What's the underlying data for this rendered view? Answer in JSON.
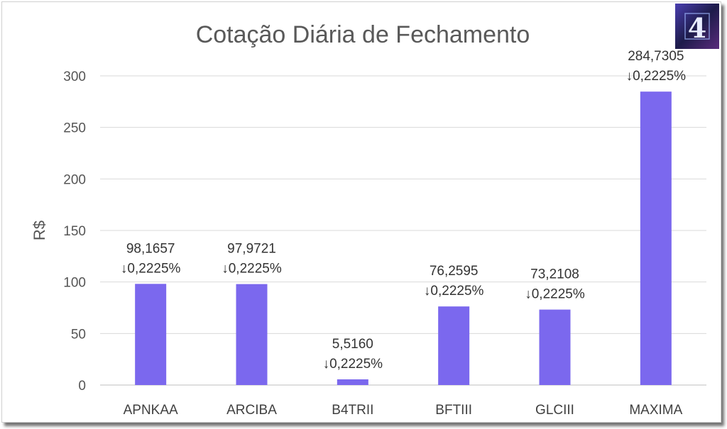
{
  "chart_data": {
    "type": "bar",
    "title": "Cotação Diária de Fechamento",
    "xlabel": "",
    "ylabel": "R$",
    "ylim": [
      0,
      300
    ],
    "yticks": [
      0,
      50,
      100,
      150,
      200,
      250,
      300
    ],
    "grid": true,
    "bar_color": "#7B68EE",
    "categories": [
      "APNKAA",
      "ARCIBA",
      "B4TRII",
      "BFTIII",
      "GLCIII",
      "MAXIMA"
    ],
    "values": [
      98.1657,
      97.9721,
      5.516,
      76.2595,
      73.2108,
      284.7305
    ],
    "value_labels": [
      "98,1657",
      "97,9721",
      "5,5160",
      "76,2595",
      "73,2108",
      "284,7305"
    ],
    "change_labels": [
      "↓0,2225%",
      "↓0,2225%",
      "↓0,2225%",
      "↓0,2225%",
      "↓0,2225%",
      "↓0,2225%"
    ]
  },
  "logo": {
    "text": "4",
    "icon": "cube-four-logo"
  }
}
